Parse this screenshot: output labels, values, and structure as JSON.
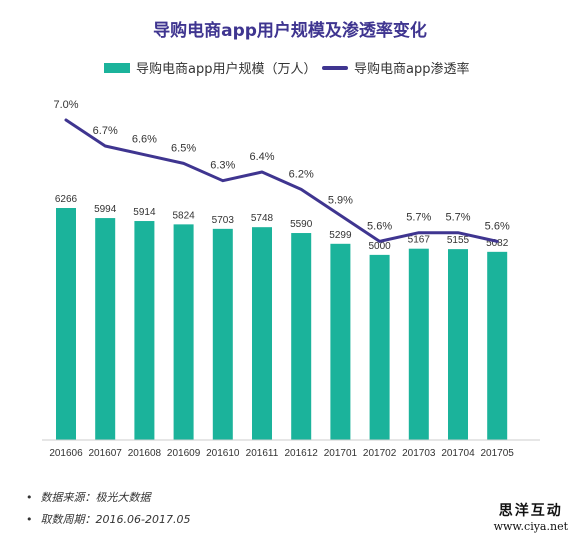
{
  "chart_data": {
    "title": "导购电商app用户规模及渗透率变化",
    "type": "bar+line",
    "categories": [
      "201606",
      "201607",
      "201608",
      "201609",
      "201610",
      "201611",
      "201612",
      "201701",
      "201702",
      "201703",
      "201704",
      "201705"
    ],
    "series": [
      {
        "name": "导购电商app用户规模（万人）",
        "type": "bar",
        "color": "#1bb39b",
        "values": [
          6266,
          5994,
          5914,
          5824,
          5703,
          5748,
          5590,
          5299,
          5000,
          5167,
          5155,
          5082
        ]
      },
      {
        "name": "导购电商app渗透率",
        "type": "line",
        "color": "#3f3590",
        "values": [
          7.0,
          6.7,
          6.6,
          6.5,
          6.3,
          6.4,
          6.2,
          5.9,
          5.6,
          5.7,
          5.7,
          5.6
        ],
        "labels": [
          "7.0%",
          "6.7%",
          "6.6%",
          "6.5%",
          "6.3%",
          "6.4%",
          "6.2%",
          "5.9%",
          "5.6%",
          "5.7%",
          "5.7%",
          "5.6%"
        ]
      }
    ],
    "grid": false,
    "legend_position": "top-center"
  },
  "notes": [
    "数据来源：极光大数据",
    "取数周期：2016.06-2017.05"
  ],
  "watermark": {
    "name": "思洋互动",
    "url": "www.ciya.net"
  }
}
